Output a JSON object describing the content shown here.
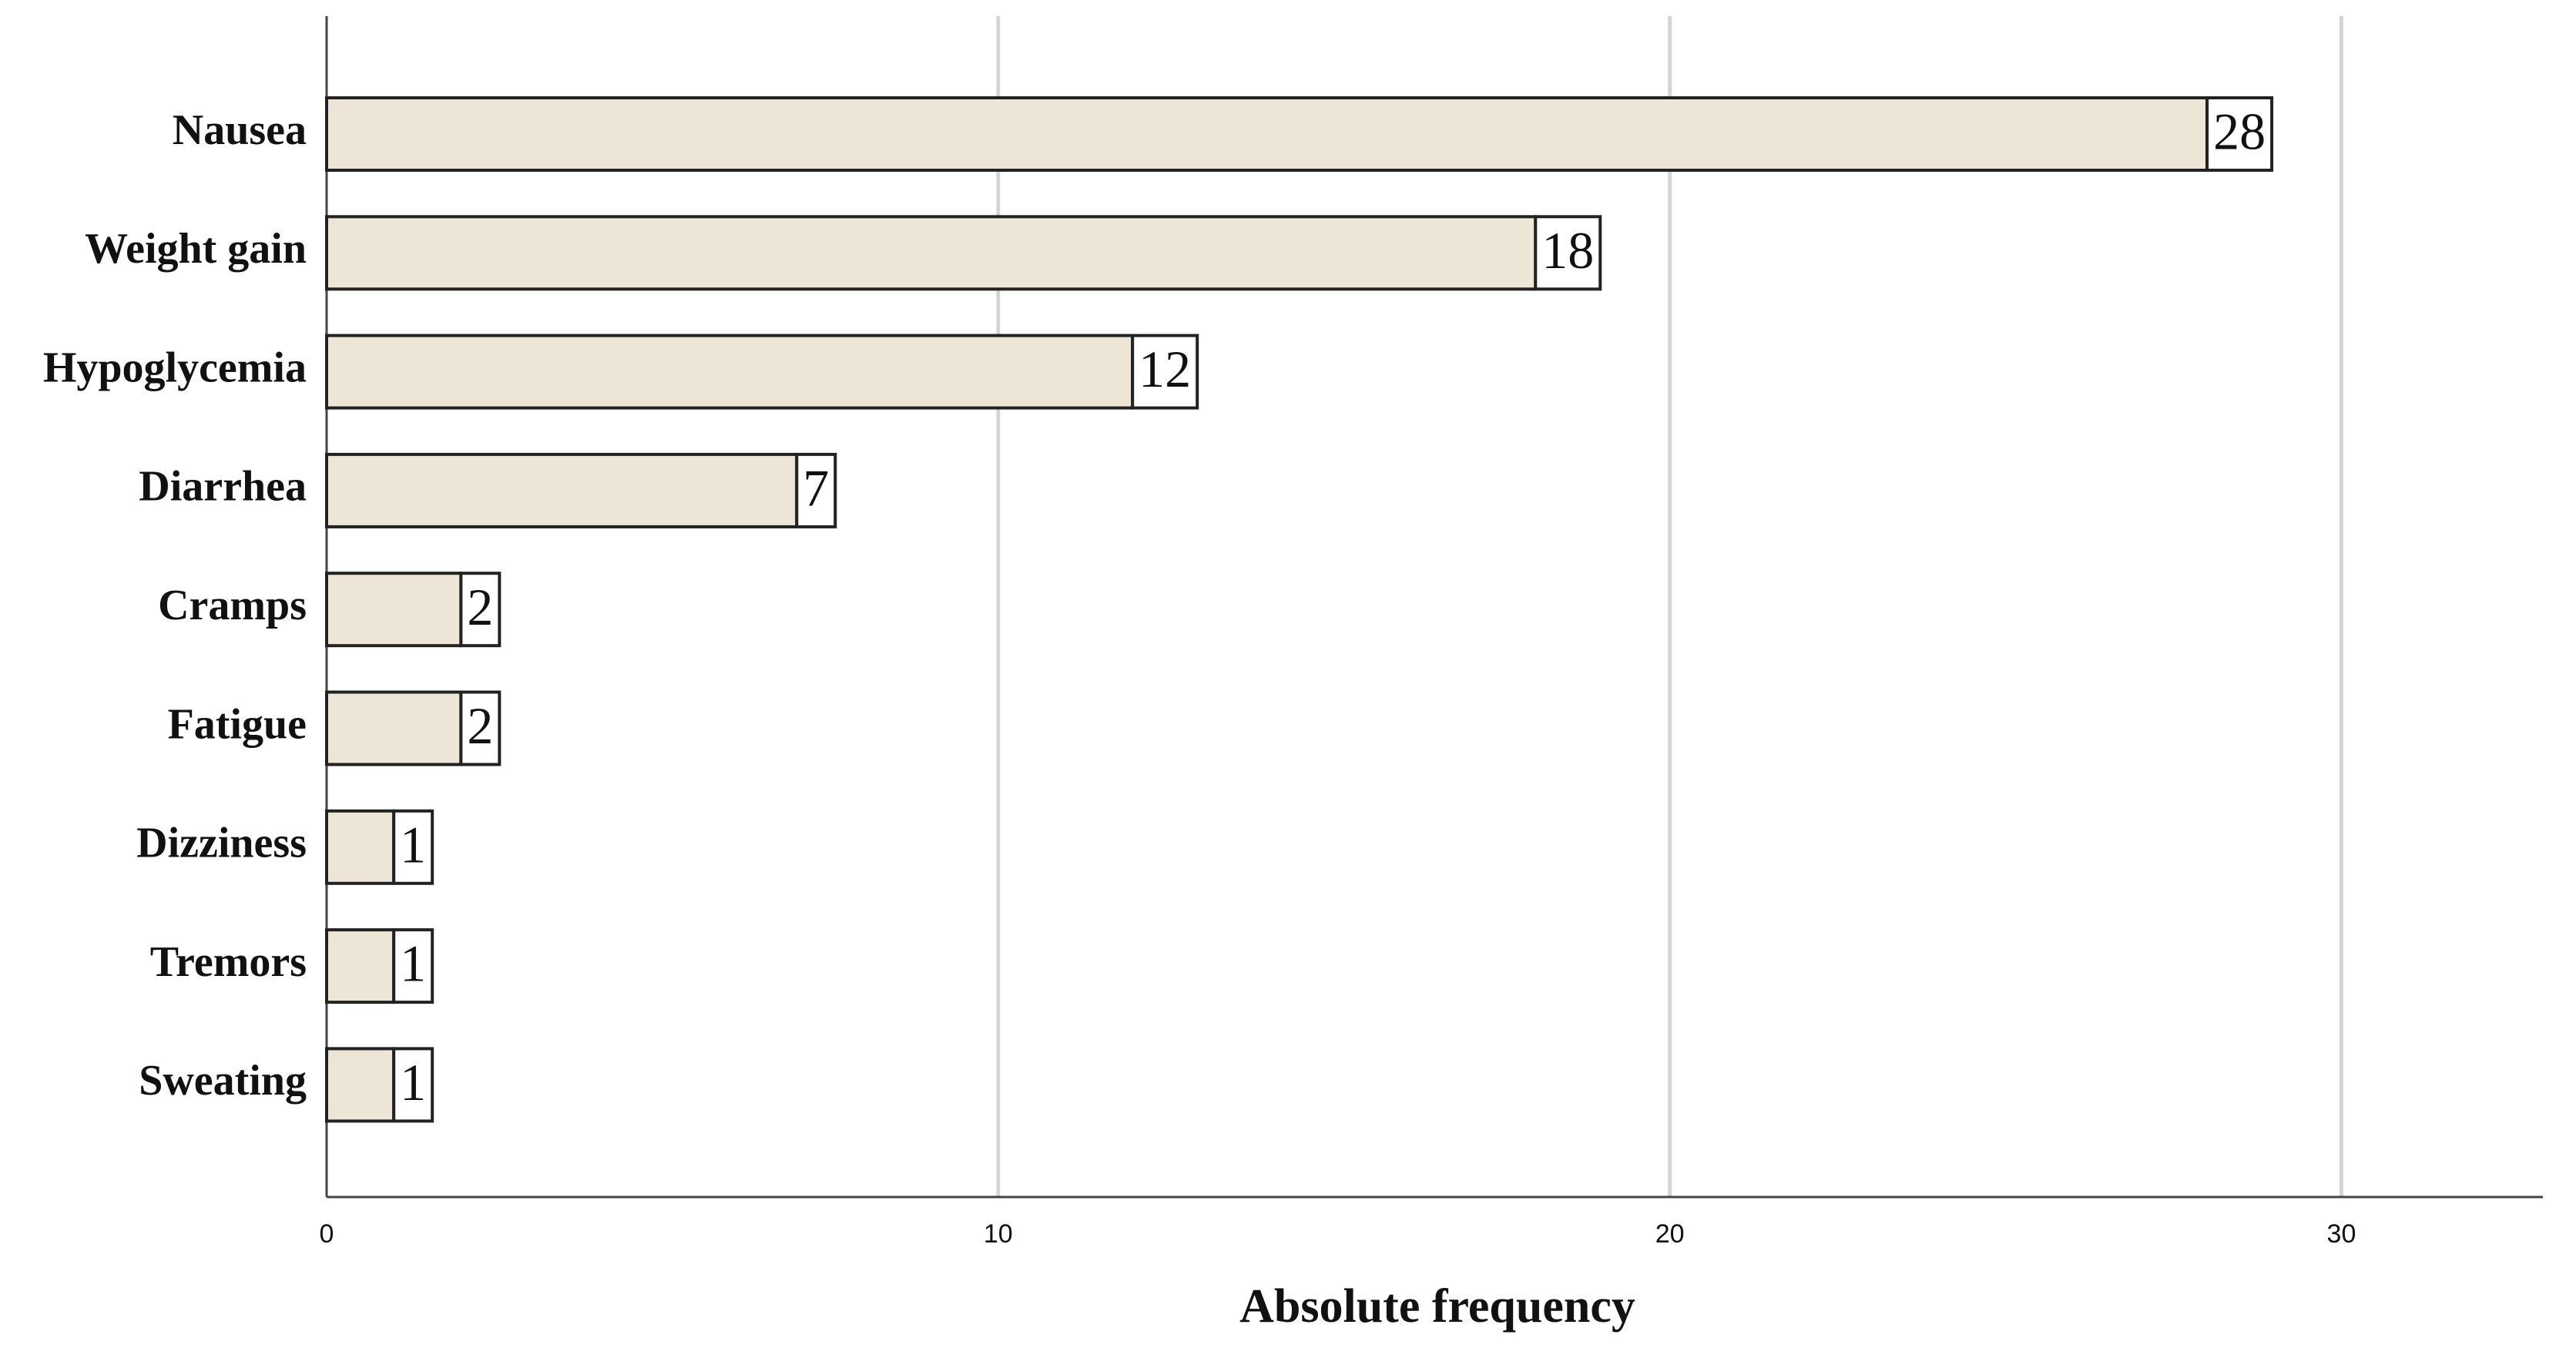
{
  "chart_data": {
    "type": "bar",
    "orientation": "horizontal",
    "xlabel": "Absolute frequency",
    "categories": [
      "Nausea",
      "Weight gain",
      "Hypoglycemia",
      "Diarrhea",
      "Cramps",
      "Fatigue",
      "Dizziness",
      "Tremors",
      "Sweating"
    ],
    "values": [
      28,
      18,
      12,
      7,
      2,
      2,
      1,
      1,
      1
    ],
    "color": "#ede6d6",
    "xlim": [
      0,
      33
    ],
    "xticks": [
      0,
      10,
      20,
      30
    ],
    "grid": true
  }
}
